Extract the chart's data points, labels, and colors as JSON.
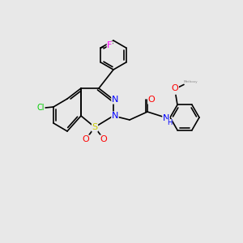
{
  "bg_color": "#e8e8e8",
  "bond_color": "#000000",
  "atom_colors": {
    "N": "#0000ff",
    "S": "#cccc00",
    "O": "#ff0000",
    "Cl": "#00cc00",
    "F": "#ff00ff",
    "H": "#0000ff"
  },
  "font_size": 7,
  "line_width": 1.2
}
